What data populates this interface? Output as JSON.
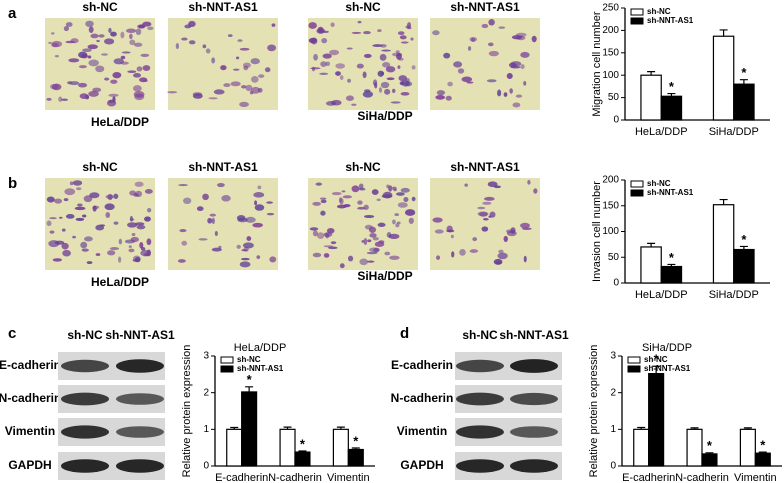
{
  "panels": {
    "a": {
      "label": "a",
      "image_labels": [
        "sh-NC",
        "sh-NNT-AS1",
        "sh-NC",
        "sh-NNT-AS1"
      ],
      "groups": [
        "HeLa/DDP",
        "SiHa/DDP"
      ]
    },
    "b": {
      "label": "b",
      "image_labels": [
        "sh-NC",
        "sh-NNT-AS1",
        "sh-NC",
        "sh-NNT-AS1"
      ],
      "groups": [
        "HeLa/DDP",
        "SiHa/DDP"
      ]
    },
    "c": {
      "label": "c",
      "lanes": [
        "sh-NC",
        "sh-NNT-AS1"
      ],
      "proteins": [
        "E-cadherin",
        "N-cadherin",
        "Vimentin",
        "GAPDH"
      ]
    },
    "d": {
      "label": "d",
      "lanes": [
        "sh-NC",
        "sh-NNT-AS1"
      ],
      "proteins": [
        "E-cadherin",
        "N-cadherin",
        "Vimentin",
        "GAPDH"
      ]
    }
  },
  "chart_data": [
    {
      "type": "bar",
      "ylabel": "Migration cell number",
      "categories": [
        "HeLa/DDP",
        "SiHa/DDP"
      ],
      "series": [
        {
          "name": "sh-NC",
          "color": "#ffffff",
          "values": [
            100,
            187
          ],
          "errors": [
            8,
            14
          ]
        },
        {
          "name": "sh-NNT-AS1",
          "color": "#000000",
          "values": [
            53,
            80
          ],
          "errors": [
            6,
            10
          ],
          "significance": [
            "*",
            "*"
          ]
        }
      ],
      "ylim": [
        0,
        250
      ],
      "yticks": [
        0,
        50,
        100,
        150,
        200,
        250
      ],
      "legend": "upper left"
    },
    {
      "type": "bar",
      "ylabel": "Invasion cell number",
      "categories": [
        "HeLa/DDP",
        "SiHa/DDP"
      ],
      "series": [
        {
          "name": "sh-NC",
          "color": "#ffffff",
          "values": [
            70,
            152
          ],
          "errors": [
            7,
            10
          ]
        },
        {
          "name": "sh-NNT-AS1",
          "color": "#000000",
          "values": [
            32,
            65
          ],
          "errors": [
            4,
            6
          ],
          "significance": [
            "*",
            "*"
          ]
        }
      ],
      "ylim": [
        0,
        200
      ],
      "yticks": [
        0,
        50,
        100,
        150,
        200
      ],
      "legend": "upper left"
    },
    {
      "type": "bar",
      "title": "HeLa/DDP",
      "ylabel": "Relative protein expression",
      "categories": [
        "E-cadherin",
        "N-cadherin",
        "Vimentin"
      ],
      "series": [
        {
          "name": "sh-NC",
          "color": "#ffffff",
          "values": [
            1,
            1,
            1
          ],
          "errors": [
            0.05,
            0.06,
            0.06
          ]
        },
        {
          "name": "sh-NNT-AS1",
          "color": "#000000",
          "values": [
            2.02,
            0.38,
            0.45
          ],
          "errors": [
            0.14,
            0.03,
            0.04
          ],
          "significance": [
            "*",
            "*",
            "*"
          ]
        }
      ],
      "ylim": [
        0,
        3
      ],
      "yticks": [
        0,
        1,
        2,
        3
      ],
      "legend": "upper left"
    },
    {
      "type": "bar",
      "title": "SiHa/DDP",
      "ylabel": "Relative protein expression",
      "categories": [
        "E-cadherin",
        "N-cadherin",
        "Vimentin"
      ],
      "series": [
        {
          "name": "sh-NC",
          "color": "#ffffff",
          "values": [
            1,
            1,
            1
          ],
          "errors": [
            0.05,
            0.04,
            0.04
          ]
        },
        {
          "name": "sh-NNT-AS1",
          "color": "#000000",
          "values": [
            2.52,
            0.33,
            0.35
          ],
          "errors": [
            0.2,
            0.03,
            0.03
          ],
          "significance": [
            "*",
            "*",
            "*"
          ]
        }
      ],
      "ylim": [
        0,
        3
      ],
      "yticks": [
        0,
        1,
        2,
        3
      ],
      "legend": "upper left"
    }
  ]
}
